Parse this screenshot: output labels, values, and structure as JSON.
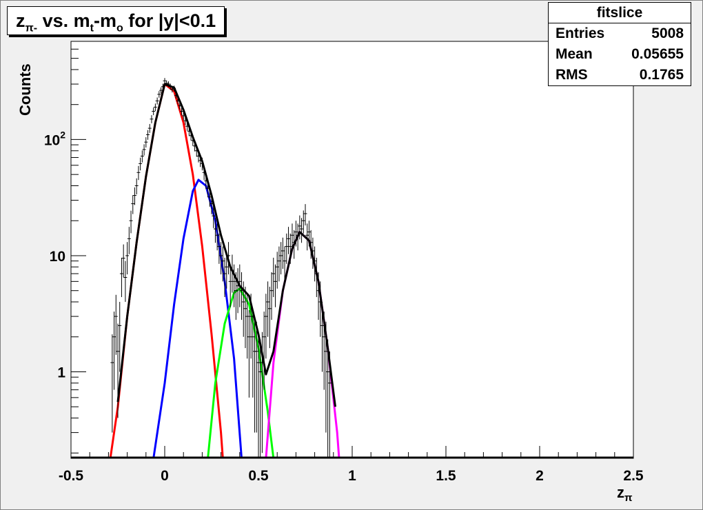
{
  "title": {
    "main_a": "z",
    "main_a_sub": "π-",
    "main_b": " vs. m",
    "main_b_sub": "t",
    "main_c": "-m",
    "main_c_sub": "o",
    "main_d": " for |y|<0.1"
  },
  "stats": {
    "name": "fitslice",
    "rows": [
      {
        "label": "Entries",
        "value": "5008"
      },
      {
        "label": "Mean",
        "value": "0.05655"
      },
      {
        "label": "RMS",
        "value": "0.1765"
      }
    ]
  },
  "axes": {
    "xlabel_main": "z",
    "xlabel_sub": "π",
    "ylabel": "Counts"
  },
  "chart_data": {
    "type": "line",
    "xlabel": "zπ",
    "ylabel": "Counts",
    "xlim": [
      -0.5,
      2.5
    ],
    "ylim": [
      0.18,
      700
    ],
    "yscale": "log",
    "x_ticks": [
      -0.5,
      0,
      0.5,
      1,
      1.5,
      2,
      2.5
    ],
    "x_tick_labels": [
      "-0.5",
      "0",
      "0.5",
      "1",
      "1.5",
      "2",
      "2.5"
    ],
    "y_ticks": [
      1,
      10,
      100
    ],
    "y_tick_labels": [
      "1",
      "10",
      "10²"
    ],
    "series": [
      {
        "color": "#ff0000",
        "values": [
          [
            -0.29,
            0.18
          ],
          [
            -0.25,
            0.5
          ],
          [
            -0.2,
            3
          ],
          [
            -0.15,
            13
          ],
          [
            -0.1,
            48
          ],
          [
            -0.05,
            140
          ],
          [
            0,
            300
          ],
          [
            0.05,
            260
          ],
          [
            0.1,
            140
          ],
          [
            0.15,
            50
          ],
          [
            0.2,
            12
          ],
          [
            0.25,
            2.1
          ],
          [
            0.3,
            0.3
          ],
          [
            0.31,
            0.18
          ]
        ]
      },
      {
        "color": "#0000ff",
        "values": [
          [
            -0.06,
            0.18
          ],
          [
            0,
            0.8
          ],
          [
            0.05,
            3.8
          ],
          [
            0.1,
            14
          ],
          [
            0.15,
            36
          ],
          [
            0.18,
            45
          ],
          [
            0.22,
            40
          ],
          [
            0.27,
            20
          ],
          [
            0.32,
            6
          ],
          [
            0.37,
            1.3
          ],
          [
            0.41,
            0.18
          ]
        ]
      },
      {
        "color": "#00ff00",
        "values": [
          [
            0.23,
            0.18
          ],
          [
            0.27,
            0.8
          ],
          [
            0.32,
            2.6
          ],
          [
            0.37,
            4.8
          ],
          [
            0.4,
            5.2
          ],
          [
            0.45,
            3.8
          ],
          [
            0.5,
            1.6
          ],
          [
            0.55,
            0.45
          ],
          [
            0.58,
            0.18
          ]
        ]
      },
      {
        "color": "#ff00ff",
        "values": [
          [
            0.54,
            0.18
          ],
          [
            0.58,
            1.2
          ],
          [
            0.63,
            5
          ],
          [
            0.68,
            11.5
          ],
          [
            0.72,
            16
          ],
          [
            0.77,
            13.5
          ],
          [
            0.82,
            6
          ],
          [
            0.87,
            1.6
          ],
          [
            0.92,
            0.3
          ],
          [
            0.93,
            0.18
          ]
        ]
      },
      {
        "color": "#000000",
        "values": [
          [
            -0.25,
            0.55
          ],
          [
            -0.2,
            3
          ],
          [
            -0.15,
            13
          ],
          [
            -0.1,
            48
          ],
          [
            -0.05,
            140
          ],
          [
            0,
            300
          ],
          [
            0.05,
            280
          ],
          [
            0.1,
            180
          ],
          [
            0.15,
            105
          ],
          [
            0.2,
            65
          ],
          [
            0.25,
            33
          ],
          [
            0.3,
            15
          ],
          [
            0.35,
            8
          ],
          [
            0.4,
            5.5
          ],
          [
            0.45,
            4.5
          ],
          [
            0.5,
            2.1
          ],
          [
            0.54,
            0.95
          ],
          [
            0.58,
            1.5
          ],
          [
            0.63,
            5
          ],
          [
            0.68,
            11.5
          ],
          [
            0.72,
            16
          ],
          [
            0.77,
            13.5
          ],
          [
            0.82,
            6
          ],
          [
            0.87,
            1.6
          ],
          [
            0.91,
            0.5
          ]
        ]
      }
    ],
    "data_points": [
      [
        -0.28,
        1.2,
        0.9
      ],
      [
        -0.27,
        2.0,
        1.3
      ],
      [
        -0.26,
        3.0,
        1.6
      ],
      [
        -0.25,
        1.5,
        1.1
      ],
      [
        -0.24,
        2.5,
        1.5
      ],
      [
        -0.23,
        7.0,
        2.6
      ],
      [
        -0.22,
        9.5,
        3.0
      ],
      [
        -0.21,
        6.5,
        2.5
      ],
      [
        -0.2,
        10,
        3.1
      ],
      [
        -0.19,
        14,
        3.7
      ],
      [
        -0.18,
        20,
        4.4
      ],
      [
        -0.17,
        28,
        5.2
      ],
      [
        -0.16,
        33,
        5.7
      ],
      [
        -0.15,
        40,
        6.3
      ],
      [
        -0.14,
        52,
        7.2
      ],
      [
        -0.13,
        62,
        7.8
      ],
      [
        -0.12,
        72,
        8.5
      ],
      [
        -0.11,
        82,
        9
      ],
      [
        -0.1,
        95,
        9.7
      ],
      [
        -0.09,
        110,
        10.5
      ],
      [
        -0.08,
        125,
        11
      ],
      [
        -0.07,
        150,
        12
      ],
      [
        -0.06,
        175,
        13
      ],
      [
        -0.05,
        190,
        14
      ],
      [
        -0.04,
        215,
        15
      ],
      [
        -0.03,
        245,
        16
      ],
      [
        -0.02,
        265,
        16
      ],
      [
        -0.01,
        285,
        17
      ],
      [
        0.0,
        320,
        18
      ],
      [
        0.01,
        305,
        17
      ],
      [
        0.02,
        300,
        17
      ],
      [
        0.03,
        285,
        17
      ],
      [
        0.04,
        270,
        16
      ],
      [
        0.05,
        275,
        16
      ],
      [
        0.06,
        240,
        15
      ],
      [
        0.07,
        215,
        15
      ],
      [
        0.08,
        195,
        14
      ],
      [
        0.09,
        175,
        13
      ],
      [
        0.1,
        160,
        13
      ],
      [
        0.11,
        145,
        12
      ],
      [
        0.12,
        130,
        11
      ],
      [
        0.13,
        118,
        11
      ],
      [
        0.14,
        108,
        10
      ],
      [
        0.15,
        98,
        10
      ],
      [
        0.16,
        88,
        9
      ],
      [
        0.17,
        80,
        9
      ],
      [
        0.18,
        72,
        8.5
      ],
      [
        0.19,
        66,
        8
      ],
      [
        0.2,
        62,
        7.8
      ],
      [
        0.21,
        52,
        7.2
      ],
      [
        0.22,
        44,
        6.6
      ],
      [
        0.23,
        38,
        6.2
      ],
      [
        0.24,
        32,
        5.6
      ],
      [
        0.25,
        28,
        5.3
      ],
      [
        0.26,
        22,
        4.7
      ],
      [
        0.27,
        17,
        4.1
      ],
      [
        0.28,
        15,
        3.9
      ],
      [
        0.29,
        12,
        3.5
      ],
      [
        0.3,
        10,
        3.1
      ],
      [
        0.31,
        9,
        3.0
      ],
      [
        0.32,
        7,
        2.6
      ],
      [
        0.33,
        8,
        2.8
      ],
      [
        0.34,
        10,
        3.1
      ],
      [
        0.35,
        6,
        2.4
      ],
      [
        0.36,
        7.5,
        2.7
      ],
      [
        0.37,
        6,
        2.4
      ],
      [
        0.38,
        5,
        2.2
      ],
      [
        0.39,
        5.5,
        2.3
      ],
      [
        0.4,
        6,
        2.4
      ],
      [
        0.41,
        5,
        2.2
      ],
      [
        0.42,
        4,
        2.0
      ],
      [
        0.43,
        3.5,
        1.9
      ],
      [
        0.44,
        3,
        1.7
      ],
      [
        0.45,
        2,
        1.4
      ],
      [
        0.46,
        3,
        1.7
      ],
      [
        0.47,
        2,
        1.4
      ],
      [
        0.48,
        1.5,
        1.2
      ],
      [
        0.49,
        1.5,
        1.2
      ],
      [
        0.5,
        1.2,
        1.0
      ],
      [
        0.51,
        1.0,
        0.9
      ],
      [
        0.52,
        1.2,
        1.0
      ],
      [
        0.53,
        2.0,
        1.3
      ],
      [
        0.54,
        3,
        1.7
      ],
      [
        0.55,
        4,
        2.0
      ],
      [
        0.56,
        3.5,
        1.9
      ],
      [
        0.57,
        5,
        2.2
      ],
      [
        0.58,
        7,
        2.6
      ],
      [
        0.59,
        6,
        2.4
      ],
      [
        0.6,
        8,
        2.8
      ],
      [
        0.61,
        9,
        3.0
      ],
      [
        0.62,
        10,
        3.1
      ],
      [
        0.63,
        11,
        3.3
      ],
      [
        0.64,
        9,
        3.0
      ],
      [
        0.65,
        12,
        3.5
      ],
      [
        0.66,
        14,
        3.7
      ],
      [
        0.67,
        12,
        3.5
      ],
      [
        0.68,
        15,
        3.9
      ],
      [
        0.69,
        13,
        3.6
      ],
      [
        0.7,
        16,
        4.0
      ],
      [
        0.71,
        15,
        3.9
      ],
      [
        0.72,
        18,
        4.2
      ],
      [
        0.73,
        17,
        4.1
      ],
      [
        0.74,
        20,
        4.5
      ],
      [
        0.75,
        23,
        4.8
      ],
      [
        0.76,
        15,
        3.9
      ],
      [
        0.77,
        16,
        4.0
      ],
      [
        0.78,
        13,
        3.6
      ],
      [
        0.79,
        11,
        3.3
      ],
      [
        0.8,
        9,
        3.0
      ],
      [
        0.81,
        7,
        2.6
      ],
      [
        0.82,
        5,
        2.2
      ],
      [
        0.83,
        4,
        2.0
      ],
      [
        0.84,
        2.5,
        1.5
      ],
      [
        0.85,
        2.0,
        1.3
      ],
      [
        0.86,
        1.5,
        1.2
      ],
      [
        0.87,
        1.0,
        0.9
      ],
      [
        0.88,
        0.8,
        0.7
      ]
    ],
    "grid": false,
    "stats_box_position": "top-right"
  }
}
